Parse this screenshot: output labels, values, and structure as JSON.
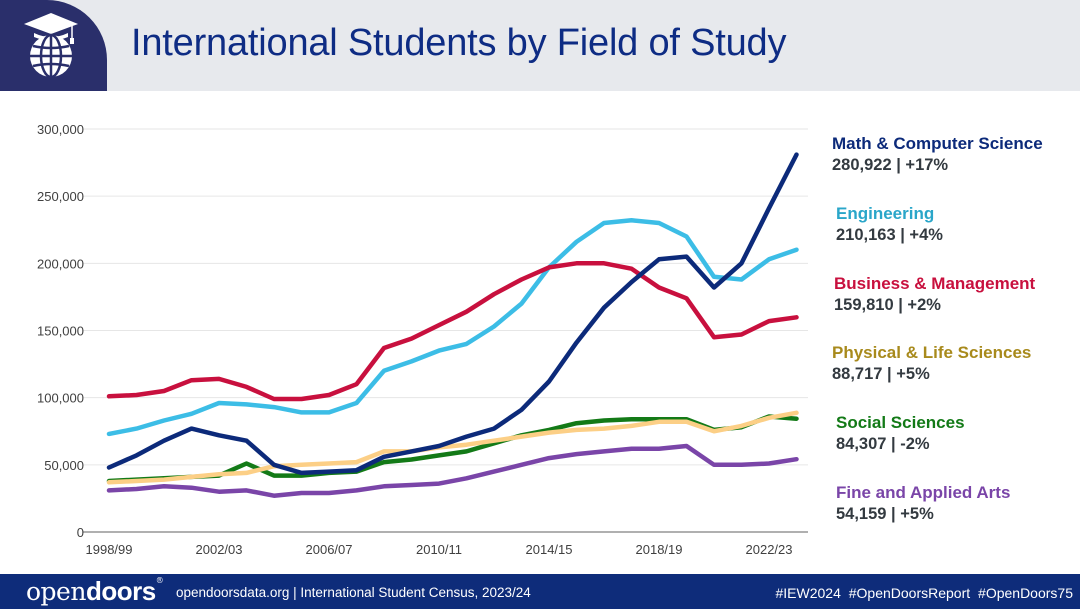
{
  "header": {
    "title": "International Students by Field of Study",
    "logo_icon": "graduation-globe-icon"
  },
  "footer": {
    "brand_light": "open",
    "brand_bold": "doors",
    "brand_mark": "®",
    "source": "opendoorsdata.org  |  International Student Census, 2023/24",
    "hashtags": "#IEW2024  #OpenDoorsReport  #OpenDoors75"
  },
  "legend": [
    {
      "name": "Math & Computer Science",
      "value": "280,922  |  +17%",
      "color": "#0c2a7a"
    },
    {
      "name": "Engineering",
      "value": "210,163  |  +4%",
      "color": "#2aa6c9"
    },
    {
      "name": "Business & Management",
      "value": "159,810  |  +2%",
      "color": "#c8103e"
    },
    {
      "name": "Physical & Life Sciences",
      "value": "88,717  |  +5%",
      "color": "#a88a1c"
    },
    {
      "name": "Social Sciences",
      "value": "84,307  |  -2%",
      "color": "#137a17"
    },
    {
      "name": "Fine and Applied Arts",
      "value": "54,159  |  +5%",
      "color": "#7a45a8"
    }
  ],
  "chart_data": {
    "type": "line",
    "title": "International Students by Field of Study",
    "xlabel": "",
    "ylabel": "",
    "ylim": [
      0,
      300000
    ],
    "yticks": [
      0,
      50000,
      100000,
      150000,
      200000,
      250000,
      300000
    ],
    "ytick_labels": [
      "0",
      "50,000",
      "100,000",
      "150,000",
      "200,000",
      "250,000",
      "300,000"
    ],
    "x": [
      "1998/99",
      "1999/00",
      "2000/01",
      "2001/02",
      "2002/03",
      "2003/04",
      "2004/05",
      "2005/06",
      "2006/07",
      "2007/08",
      "2008/09",
      "2009/10",
      "2010/11",
      "2011/12",
      "2012/13",
      "2013/14",
      "2014/15",
      "2015/16",
      "2016/17",
      "2017/18",
      "2018/19",
      "2019/20",
      "2020/21",
      "2021/22",
      "2022/23",
      "2023/24"
    ],
    "xtick_labels": [
      "1998/99",
      "2002/03",
      "2006/07",
      "2010/11",
      "2014/15",
      "2018/19",
      "2022/23"
    ],
    "grid": true,
    "legend_position": "right",
    "series": [
      {
        "name": "Engineering",
        "color": "#3cbde6",
        "values": [
          73000,
          77000,
          83000,
          88000,
          96000,
          95000,
          93000,
          89000,
          89000,
          96000,
          120000,
          127000,
          135000,
          140000,
          153000,
          170000,
          197000,
          216000,
          230000,
          232000,
          230000,
          220000,
          190000,
          188000,
          203000,
          210163
        ]
      },
      {
        "name": "Business & Management",
        "color": "#c8103e",
        "values": [
          101000,
          102000,
          105000,
          113000,
          114000,
          108000,
          99000,
          99000,
          102000,
          110000,
          137000,
          144000,
          154000,
          164000,
          177000,
          188000,
          197000,
          200000,
          200000,
          196000,
          182000,
          174000,
          145000,
          147000,
          157000,
          159810
        ]
      },
      {
        "name": "Fine and Applied Arts",
        "color": "#7a45a8",
        "values": [
          31000,
          32000,
          34000,
          33000,
          30000,
          31000,
          27000,
          29000,
          29000,
          31000,
          34000,
          35000,
          36000,
          40000,
          45000,
          50000,
          55000,
          58000,
          60000,
          62000,
          62000,
          64000,
          50000,
          50000,
          51000,
          54159
        ]
      },
      {
        "name": "Social Sciences",
        "color": "#137a17",
        "values": [
          38000,
          39000,
          40000,
          41000,
          42000,
          51000,
          42000,
          42000,
          44000,
          45000,
          52000,
          54000,
          57000,
          60000,
          66000,
          72000,
          76000,
          81000,
          83000,
          84000,
          84000,
          84000,
          76000,
          78000,
          86000,
          84307
        ]
      },
      {
        "name": "Physical & Life Sciences",
        "color": "#fccf86",
        "values": [
          37000,
          38000,
          39000,
          41000,
          43000,
          44000,
          49000,
          50000,
          51000,
          52000,
          60000,
          60000,
          63000,
          65000,
          68000,
          71000,
          74000,
          76000,
          77000,
          79000,
          82000,
          82000,
          75000,
          79000,
          85000,
          88717
        ]
      },
      {
        "name": "Math & Computer Science",
        "color": "#0c2a7a",
        "values": [
          48000,
          57000,
          68000,
          77000,
          72000,
          68000,
          50000,
          44000,
          45000,
          46000,
          56000,
          60000,
          64000,
          71000,
          77000,
          91000,
          112000,
          141000,
          167000,
          186000,
          203000,
          205000,
          182000,
          200000,
          241000,
          280922
        ]
      }
    ]
  }
}
